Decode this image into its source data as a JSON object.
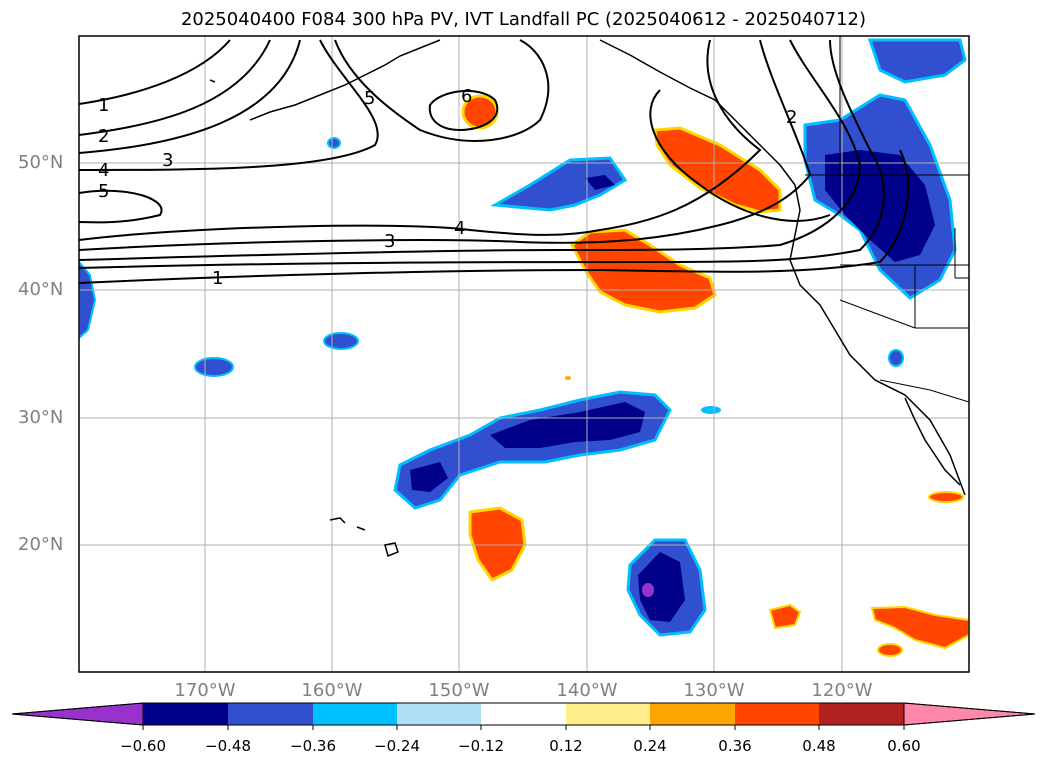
{
  "title": "2025040400 F084 300 hPa PV, IVT Landfall PC (2025040612 - 2025040712)",
  "map": {
    "lon_range": [
      -180,
      -110
    ],
    "lat_range": [
      10,
      60
    ],
    "lat_labels": [
      "50°N",
      "40°N",
      "30°N",
      "20°N"
    ],
    "lon_labels": [
      "170°W",
      "160°W",
      "150°W",
      "140°W",
      "130°W",
      "120°W"
    ],
    "contour_labels": [
      "1",
      "2",
      "3",
      "4",
      "5",
      "3",
      "4",
      "1",
      "5",
      "6",
      "2"
    ]
  },
  "colorbar": {
    "ticks": [
      "−0.60",
      "−0.48",
      "−0.36",
      "−0.24",
      "−0.12",
      "0.12",
      "0.24",
      "0.36",
      "0.48",
      "0.60"
    ],
    "colors": [
      "#9932cc",
      "#00008b",
      "#3050d0",
      "#00bfff",
      "#b0e0f8",
      "#ffffff",
      "#ffec8b",
      "#ffa500",
      "#ff4500",
      "#b22222",
      "#ff88aa"
    ]
  }
}
